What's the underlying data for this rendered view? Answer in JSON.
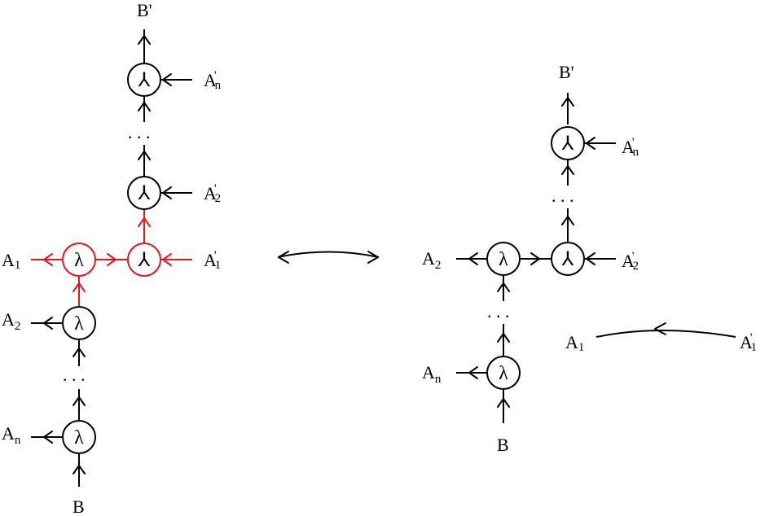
{
  "colors": {
    "ink": "#000000",
    "highlight": "#e8141c"
  },
  "labels": {
    "A1": {
      "base": "A",
      "sub": "1"
    },
    "A2": {
      "base": "A",
      "sub": "2"
    },
    "An": {
      "base": "A",
      "sub": "n"
    },
    "A1p": {
      "base": "A",
      "prime": "'",
      "sub": "1"
    },
    "A2p": {
      "base": "A",
      "prime": "'",
      "sub": "2"
    },
    "Anp": {
      "base": "A",
      "prime": "'",
      "sub": "n"
    },
    "B": "B",
    "Bp": "B'"
  },
  "glyphs": {
    "lambda": "λ",
    "merge": "⅄"
  },
  "ellipsis": ". . ."
}
